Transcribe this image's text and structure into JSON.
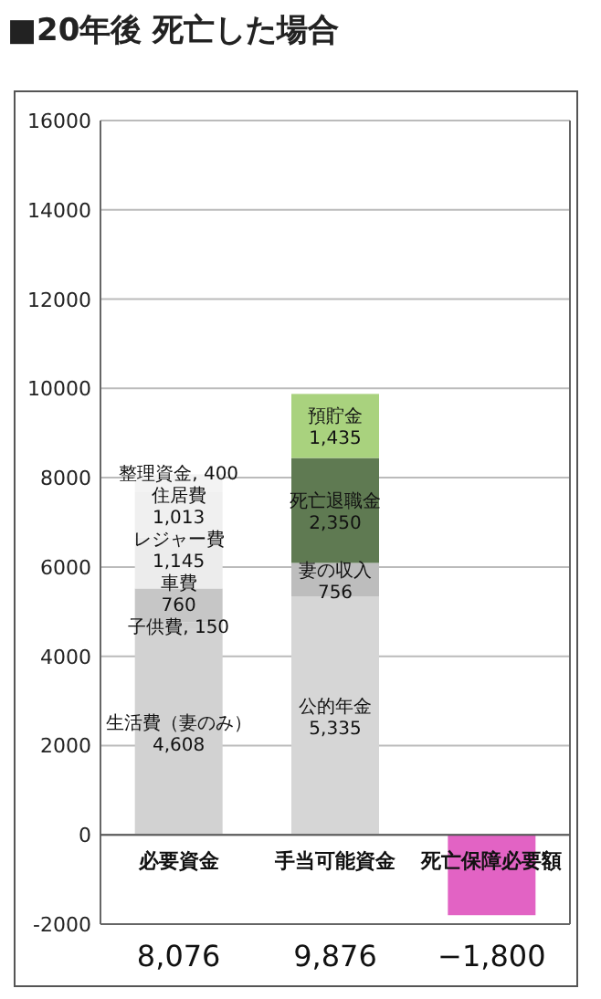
{
  "chart_data": {
    "type": "bar",
    "title": "■20年後 死亡した場合",
    "stacked": true,
    "categories": [
      "必要資金",
      "手当可能資金",
      "死亡保障必要額"
    ],
    "series": [
      {
        "name": "生活費（妻のみ）",
        "color": "#d2d2d2",
        "values": [
          4608,
          null,
          null
        ],
        "value_labels": [
          "4,608",
          null,
          null
        ]
      },
      {
        "name": "子供費,",
        "color": "#cfcfcf",
        "values": [
          150,
          null,
          null
        ],
        "value_labels": [
          "150",
          null,
          null
        ]
      },
      {
        "name": "車費",
        "color": "#c6c6c6",
        "values": [
          760,
          null,
          null
        ],
        "value_labels": [
          "760",
          null,
          null
        ]
      },
      {
        "name": "レジャー費",
        "color": "#ececec",
        "values": [
          1145,
          null,
          null
        ],
        "value_labels": [
          "1,145",
          null,
          null
        ]
      },
      {
        "name": "住居費",
        "color": "#f0f0f0",
        "values": [
          1013,
          null,
          null
        ],
        "value_labels": [
          "1,013",
          null,
          null
        ]
      },
      {
        "name": "整理資金,",
        "color": "#f3f3f3",
        "values": [
          400,
          null,
          null
        ],
        "value_labels": [
          "400",
          null,
          null
        ]
      },
      {
        "name": "公的年金",
        "color": "#d6d6d6",
        "values": [
          null,
          5335,
          null
        ],
        "value_labels": [
          null,
          "5,335",
          null
        ]
      },
      {
        "name": "妻の収入",
        "color": "#bdbdbd",
        "values": [
          null,
          756,
          null
        ],
        "value_labels": [
          null,
          "756",
          null
        ]
      },
      {
        "name": "死亡退職金",
        "color": "#5f7a52",
        "values": [
          null,
          2350,
          null
        ],
        "value_labels": [
          null,
          "2,350",
          null
        ]
      },
      {
        "name": "預貯金",
        "color": "#a9d27e",
        "values": [
          null,
          1435,
          null
        ],
        "value_labels": [
          null,
          "1,435",
          null
        ]
      },
      {
        "color": "#e263c4",
        "values": [
          null,
          null,
          -1800
        ]
      }
    ],
    "ylim": [
      -2000,
      16000
    ],
    "yticks": [
      -2000,
      0,
      2000,
      4000,
      6000,
      8000,
      10000,
      12000,
      14000,
      16000
    ],
    "grid": "y",
    "annotations": [
      "8,076",
      "9,876",
      "−1,800"
    ]
  }
}
